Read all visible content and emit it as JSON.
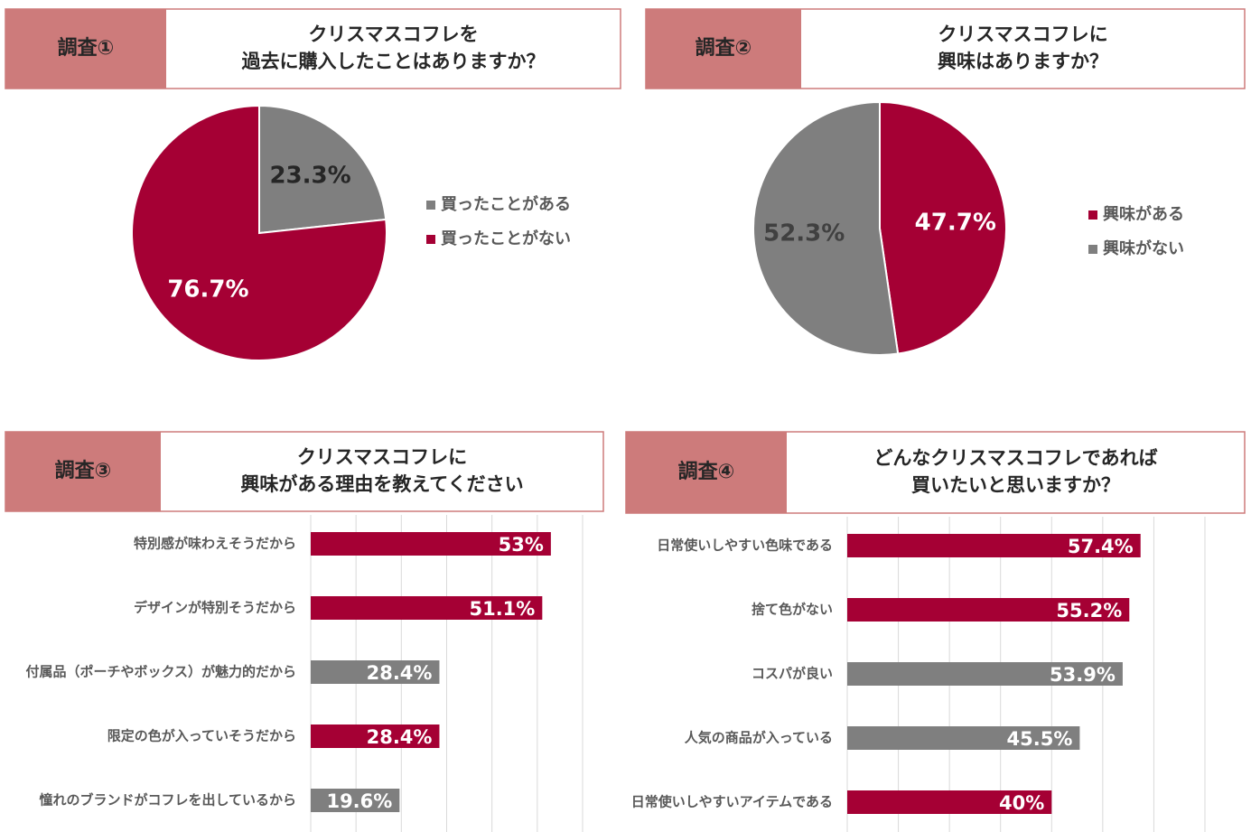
{
  "chart_data": [
    {
      "type": "pie",
      "header": "調査①",
      "title": [
        "クリスマスコフレを",
        "過去に購入したことはありますか？"
      ],
      "categories": [
        "買ったことがある",
        "買ったことがない"
      ],
      "values": [
        23.3,
        76.7
      ],
      "value_labels": [
        "23.3%",
        "76.7%"
      ],
      "colors": [
        "#7f7f7f",
        "#a50034"
      ],
      "label_colors": [
        "#262626",
        "#ffffff"
      ]
    },
    {
      "type": "pie",
      "header": "調査②",
      "title": [
        "クリスマスコフレに",
        "興味はありますか？"
      ],
      "categories": [
        "興味がある",
        "興味がない"
      ],
      "values": [
        47.7,
        52.3
      ],
      "value_labels": [
        "47.7%",
        "52.3%"
      ],
      "colors": [
        "#a50034",
        "#7f7f7f"
      ],
      "label_colors": [
        "#ffffff",
        "#404040"
      ]
    },
    {
      "type": "barh",
      "header": "調査③",
      "title": [
        "クリスマスコフレに",
        "興味がある理由を教えてください"
      ],
      "categories": [
        "特別感が味わえそうだから",
        "デザインが特別そうだから",
        "付属品（ポーチやボックス）が魅力的だから",
        "限定の色が入っていそうだから",
        "憧れのブランドがコフレを出しているから"
      ],
      "values": [
        53,
        51.1,
        28.4,
        28.4,
        19.6
      ],
      "value_labels": [
        "53%",
        "51.1%",
        "28.4%",
        "28.4%",
        "19.6%"
      ],
      "colors": [
        "#a50034",
        "#a50034",
        "#7f7f7f",
        "#a50034",
        "#7f7f7f"
      ],
      "xlim": [
        0,
        60
      ],
      "xticks": [
        0,
        10,
        20,
        30,
        40,
        50,
        60
      ],
      "grid": true,
      "show_tick_labels": false
    },
    {
      "type": "barh",
      "header": "調査④",
      "title": [
        "どんなクリスマスコフレであれば",
        "買いたいと思いますか？"
      ],
      "categories": [
        "日常使いしやすい色味である",
        "捨て色がない",
        "コスパが良い",
        "人気の商品が入っている",
        "日常使いしやすいアイテムである"
      ],
      "values": [
        57.4,
        55.2,
        53.9,
        45.5,
        40
      ],
      "value_labels": [
        "57.4%",
        "55.2%",
        "53.9%",
        "45.5%",
        "40%"
      ],
      "colors": [
        "#a50034",
        "#a50034",
        "#7f7f7f",
        "#7f7f7f",
        "#a50034"
      ],
      "xlim": [
        0,
        70
      ],
      "xticks": [
        0,
        10,
        20,
        30,
        40,
        50,
        60,
        70
      ],
      "grid": true,
      "show_tick_labels": false
    }
  ]
}
